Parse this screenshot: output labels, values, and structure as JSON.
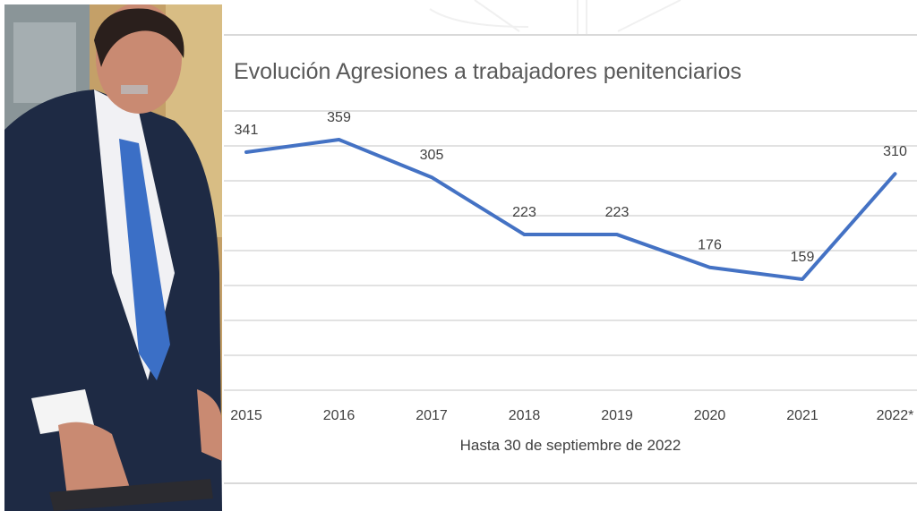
{
  "photo": {
    "subject": "man in suit with blue tie"
  },
  "chart_data": {
    "type": "line",
    "title": "Evolución Agresiones a trabajadores penitenciarios",
    "xlabel": "Hasta 30 de septiembre de 2022",
    "ylabel": "",
    "categories": [
      "2015",
      "2016",
      "2017",
      "2018",
      "2019",
      "2020",
      "2021",
      "2022*"
    ],
    "series": [
      {
        "name": "Agresiones",
        "values": [
          341,
          359,
          305,
          223,
          223,
          176,
          159,
          310
        ],
        "color": "#4472c4"
      }
    ],
    "ylim": [
      0,
      400
    ],
    "ygrid_step": 50,
    "grid": true,
    "data_labels": true
  }
}
